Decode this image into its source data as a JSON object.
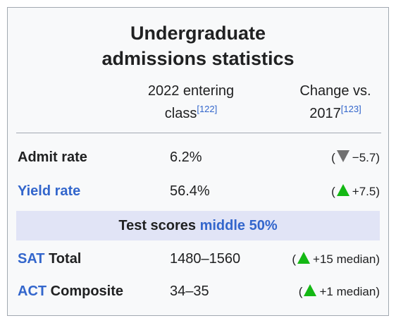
{
  "title": "Undergraduate admissions statistics",
  "columns": [
    {
      "text": "2022 entering class",
      "ref": "[122]"
    },
    {
      "text": "Change vs. 2017",
      "ref": "[123]"
    }
  ],
  "rows": [
    {
      "label": "Admit rate",
      "value": "6.2%",
      "change": {
        "open": "(",
        "text": "−5.7)"
      }
    },
    {
      "label": "Yield rate",
      "value": "56.4%",
      "change": {
        "open": "(",
        "text": "+7.5)"
      }
    }
  ],
  "section": {
    "text": "Test scores",
    "link": "middle 50%"
  },
  "tests": [
    {
      "link": "SAT",
      "label": "Total",
      "value": "1480–1560",
      "change": {
        "open": "(",
        "text": "+15 median)"
      }
    },
    {
      "link": "ACT",
      "label": "Composite",
      "value": "34–35",
      "change": {
        "open": "(",
        "text": "+1 median)"
      }
    }
  ]
}
